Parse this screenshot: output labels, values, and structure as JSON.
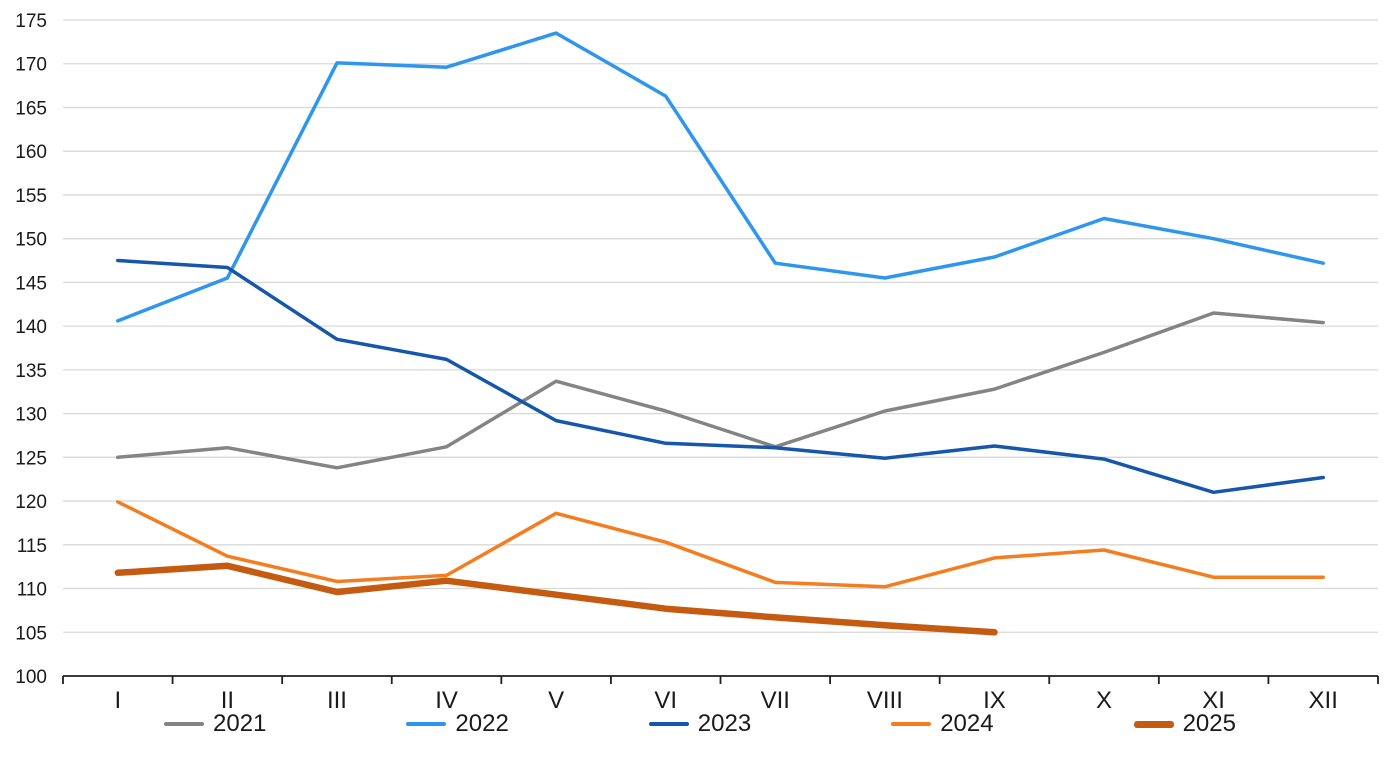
{
  "chart_data": {
    "type": "line",
    "title": "",
    "xlabel": "",
    "ylabel": "",
    "x_categories": [
      "I",
      "II",
      "III",
      "IV",
      "V",
      "VI",
      "VII",
      "VIII",
      "IX",
      "X",
      "XI",
      "XII"
    ],
    "y_axis": {
      "min": 100,
      "max": 175,
      "step": 5,
      "tick_labels": [
        "100",
        "105",
        "110",
        "115",
        "120",
        "125",
        "130",
        "135",
        "140",
        "145",
        "150",
        "155",
        "160",
        "165",
        "170",
        "175"
      ]
    },
    "grid": true,
    "legend_position": "bottom",
    "series": [
      {
        "name": "2021",
        "color": "#848484",
        "stroke_width": 3.5,
        "values": [
          125.0,
          126.1,
          123.8,
          126.2,
          133.7,
          130.3,
          126.2,
          130.3,
          132.8,
          137.0,
          141.5,
          140.4
        ]
      },
      {
        "name": "2022",
        "color": "#2E96EC",
        "stroke_width": 3.5,
        "values": [
          140.6,
          145.5,
          170.1,
          169.6,
          173.5,
          166.3,
          147.2,
          145.5,
          147.9,
          152.3,
          150.0,
          147.2
        ]
      },
      {
        "name": "2023",
        "color": "#1656AC",
        "stroke_width": 3.5,
        "values": [
          147.5,
          146.7,
          138.5,
          136.2,
          129.2,
          126.6,
          126.1,
          124.9,
          126.3,
          124.8,
          121.0,
          122.7
        ]
      },
      {
        "name": "2024",
        "color": "#F47D20",
        "stroke_width": 3.5,
        "values": [
          119.9,
          113.7,
          110.8,
          111.5,
          118.6,
          115.3,
          110.7,
          110.2,
          113.5,
          114.4,
          111.3,
          111.3
        ]
      },
      {
        "name": "2025",
        "color": "#C55A11",
        "stroke_width": 6.5,
        "values": [
          111.8,
          112.6,
          109.6,
          110.9,
          109.3,
          107.7,
          106.7,
          105.8,
          105.0
        ]
      }
    ]
  },
  "colors": {
    "background": "#FFFFFF",
    "gridline": "#D8D8D8",
    "axis": "#1F1F1F",
    "label": "#1A1A1A"
  }
}
